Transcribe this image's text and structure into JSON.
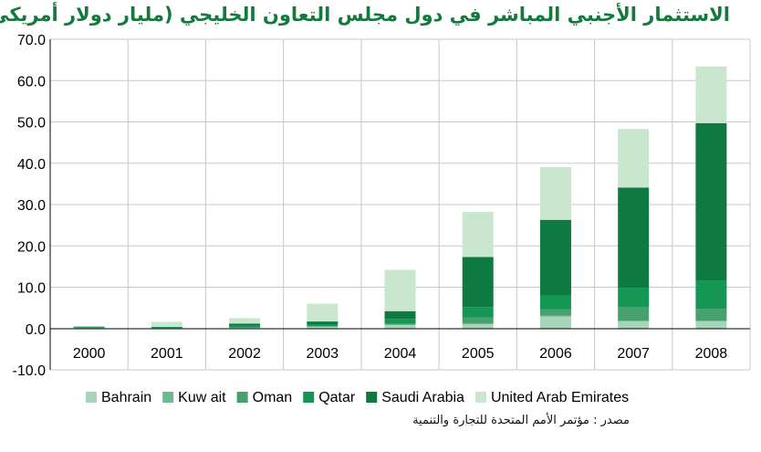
{
  "chart_data": {
    "type": "bar",
    "stacked": true,
    "title": "الاستثمار الأجنبي المباشر في دول مجلس التعاون الخليجي (مليار دولار  أمريكي)",
    "categories": [
      "2000",
      "2001",
      "2002",
      "2003",
      "2004",
      "2005",
      "2006",
      "2007",
      "2008"
    ],
    "ylim": [
      -10,
      70
    ],
    "yticks": [
      70,
      60,
      50,
      40,
      30,
      20,
      10,
      0,
      -10
    ],
    "ytick_labels": [
      "70.0",
      "60.0",
      "50.0",
      "40.0",
      "30.0",
      "20.0",
      "10.0",
      "0.0",
      "-10.0"
    ],
    "grid": true,
    "legend_position": "bottom",
    "series": [
      {
        "name": "Bahrain",
        "label": "Bahrain",
        "color": "#a8d5b9",
        "values": [
          0.2,
          0.1,
          0.2,
          0.5,
          0.9,
          1.0,
          3.0,
          1.8,
          1.8
        ]
      },
      {
        "name": "Kuwait",
        "label": "Kuw ait",
        "color": "#6fb98f",
        "values": [
          0.0,
          0.0,
          0.0,
          0.0,
          0.0,
          0.2,
          0.1,
          0.1,
          0.1
        ]
      },
      {
        "name": "Oman",
        "label": "Oman",
        "color": "#46a16f",
        "values": [
          0.1,
          0.0,
          0.0,
          0.0,
          0.2,
          1.5,
          1.6,
          3.2,
          2.9
        ]
      },
      {
        "name": "Qatar",
        "label": "Qatar",
        "color": "#139753",
        "values": [
          0.0,
          0.3,
          0.5,
          0.4,
          1.2,
          2.5,
          3.3,
          4.7,
          6.7
        ]
      },
      {
        "name": "Saudi Arabia",
        "label": "Saudi Arabia",
        "color": "#0e7a41",
        "values": [
          0.2,
          0.0,
          0.5,
          0.8,
          1.9,
          12.1,
          18.3,
          24.3,
          38.2
        ]
      },
      {
        "name": "United Arab Emirates",
        "label": "United Arab Emirates",
        "color": "#c9e7cf",
        "values": [
          0.1,
          1.2,
          1.3,
          4.3,
          10.0,
          10.9,
          12.8,
          14.2,
          13.7
        ]
      }
    ],
    "source": "مصدر : مؤتمر الأمم المتحدة للتجارة والتنمية"
  }
}
